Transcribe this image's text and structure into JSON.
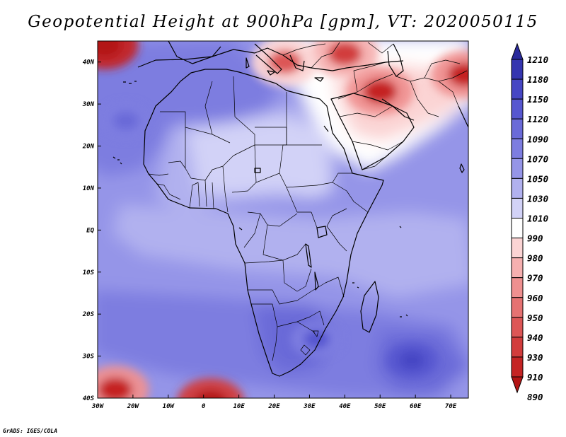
{
  "title": "Geopotential Height at 900hPa [gpm], VT: 2020050115",
  "credit": "GrADS: IGES/COLA",
  "map": {
    "region": "Africa",
    "lon_range": [
      -30,
      75
    ],
    "lat_range": [
      -40,
      45
    ],
    "lat_labels": [
      {
        "lat": 40,
        "text": "40N"
      },
      {
        "lat": 30,
        "text": "30N"
      },
      {
        "lat": 20,
        "text": "20N"
      },
      {
        "lat": 10,
        "text": "10N"
      },
      {
        "lat": 0,
        "text": "EQ"
      },
      {
        "lat": -10,
        "text": "10S"
      },
      {
        "lat": -20,
        "text": "20S"
      },
      {
        "lat": -30,
        "text": "30S"
      },
      {
        "lat": -40,
        "text": "40S"
      }
    ],
    "lon_labels": [
      {
        "lon": -30,
        "text": "30W"
      },
      {
        "lon": -20,
        "text": "20W"
      },
      {
        "lon": -10,
        "text": "10W"
      },
      {
        "lon": 0,
        "text": "0"
      },
      {
        "lon": 10,
        "text": "10E"
      },
      {
        "lon": 20,
        "text": "20E"
      },
      {
        "lon": 30,
        "text": "30E"
      },
      {
        "lon": 40,
        "text": "40E"
      },
      {
        "lon": 50,
        "text": "50E"
      },
      {
        "lon": 60,
        "text": "60E"
      },
      {
        "lon": 70,
        "text": "70E"
      }
    ]
  },
  "colorbar": {
    "labels": [
      "1210",
      "1180",
      "1150",
      "1120",
      "1090",
      "1070",
      "1050",
      "1030",
      "1010",
      "990",
      "980",
      "970",
      "960",
      "950",
      "940",
      "930",
      "910",
      "890"
    ],
    "colors": [
      "#2a2a9c",
      "#3535b0",
      "#4646c4",
      "#5757d0",
      "#6a6ad8",
      "#7d7de0",
      "#9595e8",
      "#b1b1ef",
      "#d2d2f7",
      "#ffffff",
      "#fbd4d4",
      "#f6b0b0",
      "#ef9090",
      "#e67272",
      "#dd5656",
      "#d23c3c",
      "#c52424",
      "#b31414"
    ]
  },
  "field": {
    "units": "gpm",
    "level": "900hPa",
    "features": [
      {
        "name": "high",
        "lon": 59,
        "lat": -31,
        "value": 1130
      },
      {
        "name": "high",
        "lon": 32,
        "lat": -26,
        "value": 1085
      },
      {
        "name": "high",
        "lon": -22,
        "lat": 26,
        "value": 1070
      },
      {
        "name": "low",
        "lon": -28,
        "lat": 44,
        "value": 910
      },
      {
        "name": "low",
        "lon": 2,
        "lat": -41,
        "value": 930
      },
      {
        "name": "low",
        "lon": -25,
        "lat": -38,
        "value": 960
      },
      {
        "name": "low",
        "lon": 50,
        "lat": 33,
        "value": 965
      },
      {
        "name": "low",
        "lon": 40,
        "lat": 42,
        "value": 975
      },
      {
        "name": "low",
        "lon": 23,
        "lat": 40,
        "value": 985
      },
      {
        "name": "low",
        "lon": 74,
        "lat": 37,
        "value": 960
      }
    ]
  }
}
